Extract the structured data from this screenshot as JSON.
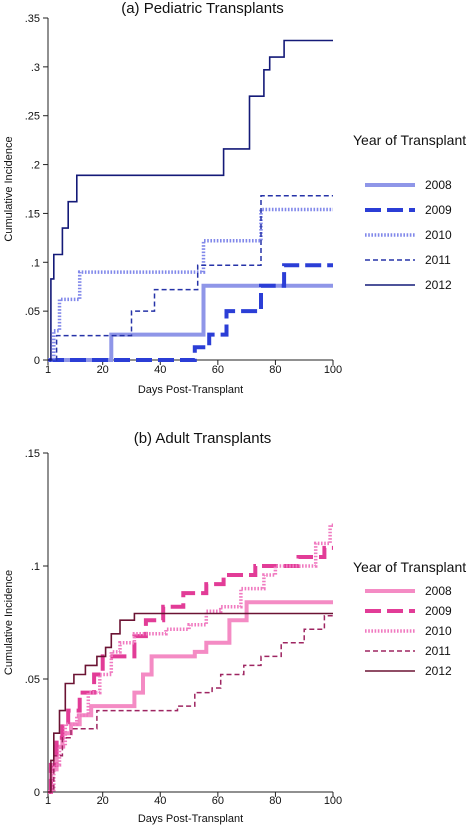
{
  "chart_data": [
    {
      "type": "line",
      "step": true,
      "title": "(a) Pediatric Transplants",
      "xlabel": "Days Post-Transplant",
      "ylabel": "Cumulative Incidence",
      "xlim": [
        1,
        100
      ],
      "ylim": [
        0,
        0.35
      ],
      "xticks": [
        1,
        20,
        40,
        60,
        80,
        100
      ],
      "xtick_labels": [
        "1",
        "20",
        "40",
        "60",
        "80",
        "100"
      ],
      "yticks": [
        0,
        0.05,
        0.1,
        0.15,
        0.2,
        0.25,
        0.3,
        0.35
      ],
      "ytick_labels": [
        "0",
        ".05",
        ".1",
        ".15",
        ".2",
        ".25",
        ".3",
        ".35"
      ],
      "grid": false,
      "legend": {
        "title": "Year of Transplant",
        "placement": "right",
        "entries": [
          "2008",
          "2009",
          "2010",
          "2011",
          "2012"
        ]
      },
      "series": [
        {
          "name": "2008",
          "color": "#8f96e8",
          "dash": "solid-thick",
          "x": [
            1,
            23,
            55,
            100
          ],
          "y": [
            0,
            0.026,
            0.076,
            0.076
          ]
        },
        {
          "name": "2009",
          "color": "#2b3ed6",
          "dash": "long-dash",
          "x": [
            1,
            52,
            57,
            63,
            75,
            83,
            100
          ],
          "y": [
            0,
            0.013,
            0.026,
            0.05,
            0.076,
            0.097,
            0.097
          ]
        },
        {
          "name": "2010",
          "color": "#8188ea",
          "dash": "dotted",
          "x": [
            1,
            3,
            5,
            12,
            55,
            75,
            100
          ],
          "y": [
            0,
            0.03,
            0.062,
            0.09,
            0.122,
            0.154,
            0.154
          ]
        },
        {
          "name": "2011",
          "color": "#2633a8",
          "dash": "short-dash",
          "x": [
            1,
            4,
            21,
            30,
            38,
            53,
            75,
            100
          ],
          "y": [
            0,
            0.025,
            0.025,
            0.05,
            0.072,
            0.097,
            0.168,
            0.168
          ]
        },
        {
          "name": "2012",
          "color": "#141a78",
          "dash": "solid",
          "x": [
            1,
            2,
            3,
            6,
            8,
            11,
            62,
            71,
            76,
            78,
            83,
            100
          ],
          "y": [
            0,
            0.083,
            0.108,
            0.135,
            0.162,
            0.189,
            0.216,
            0.27,
            0.297,
            0.31,
            0.327,
            0.327
          ]
        }
      ]
    },
    {
      "type": "line",
      "step": true,
      "title": "(b) Adult Transplants",
      "xlabel": "Days Post-Transplant",
      "ylabel": "Cumulative Incidence",
      "xlim": [
        1,
        100
      ],
      "ylim": [
        0,
        0.15
      ],
      "xticks": [
        1,
        20,
        40,
        60,
        80,
        100
      ],
      "xtick_labels": [
        "1",
        "20",
        "40",
        "60",
        "80",
        "100"
      ],
      "yticks": [
        0,
        0.05,
        0.1,
        0.15
      ],
      "ytick_labels": [
        "0",
        ".05",
        ".1",
        ".15"
      ],
      "grid": false,
      "legend": {
        "title": "Year of Transplant",
        "placement": "right",
        "entries": [
          "2008",
          "2009",
          "2010",
          "2011",
          "2012"
        ]
      },
      "series": [
        {
          "name": "2008",
          "color": "#f48bc4",
          "dash": "solid-thick",
          "x": [
            1,
            2,
            4,
            6,
            9,
            12,
            16,
            31,
            34,
            37,
            42,
            52,
            56,
            64,
            70,
            100
          ],
          "y": [
            0,
            0.01,
            0.02,
            0.026,
            0.03,
            0.034,
            0.038,
            0.044,
            0.052,
            0.06,
            0.06,
            0.062,
            0.066,
            0.076,
            0.084,
            0.084
          ]
        },
        {
          "name": "2009",
          "color": "#e23c97",
          "dash": "long-dash",
          "x": [
            1,
            2,
            4,
            6,
            8,
            12,
            17,
            20,
            31,
            35,
            41,
            48,
            56,
            62,
            73,
            88,
            97,
            100
          ],
          "y": [
            0,
            0.012,
            0.024,
            0.03,
            0.036,
            0.044,
            0.052,
            0.06,
            0.069,
            0.076,
            0.082,
            0.088,
            0.092,
            0.096,
            0.1,
            0.104,
            0.108,
            0.108
          ]
        },
        {
          "name": "2010",
          "color": "#f07ac0",
          "dash": "dotted",
          "x": [
            1,
            3,
            5,
            7,
            11,
            15,
            19,
            23,
            26,
            31,
            36,
            42,
            50,
            56,
            61,
            68,
            76,
            80,
            86,
            94,
            99,
            100
          ],
          "y": [
            0,
            0.012,
            0.02,
            0.03,
            0.034,
            0.044,
            0.052,
            0.062,
            0.066,
            0.07,
            0.07,
            0.072,
            0.074,
            0.08,
            0.082,
            0.09,
            0.096,
            0.1,
            0.1,
            0.11,
            0.118,
            0.118
          ]
        },
        {
          "name": "2011",
          "color": "#9e2561",
          "dash": "short-dash",
          "x": [
            1,
            3,
            6,
            9,
            18,
            34,
            46,
            52,
            58,
            61,
            69,
            75,
            82,
            90,
            97,
            100
          ],
          "y": [
            0,
            0.016,
            0.024,
            0.028,
            0.036,
            0.036,
            0.038,
            0.044,
            0.046,
            0.052,
            0.056,
            0.06,
            0.066,
            0.072,
            0.078,
            0.078
          ]
        },
        {
          "name": "2012",
          "color": "#6b1333",
          "dash": "solid",
          "x": [
            1,
            2,
            3,
            5,
            7,
            10,
            14,
            18,
            21,
            23,
            26,
            31,
            100
          ],
          "y": [
            0,
            0.014,
            0.026,
            0.036,
            0.048,
            0.052,
            0.056,
            0.06,
            0.064,
            0.07,
            0.076,
            0.079,
            0.079
          ]
        }
      ]
    }
  ]
}
